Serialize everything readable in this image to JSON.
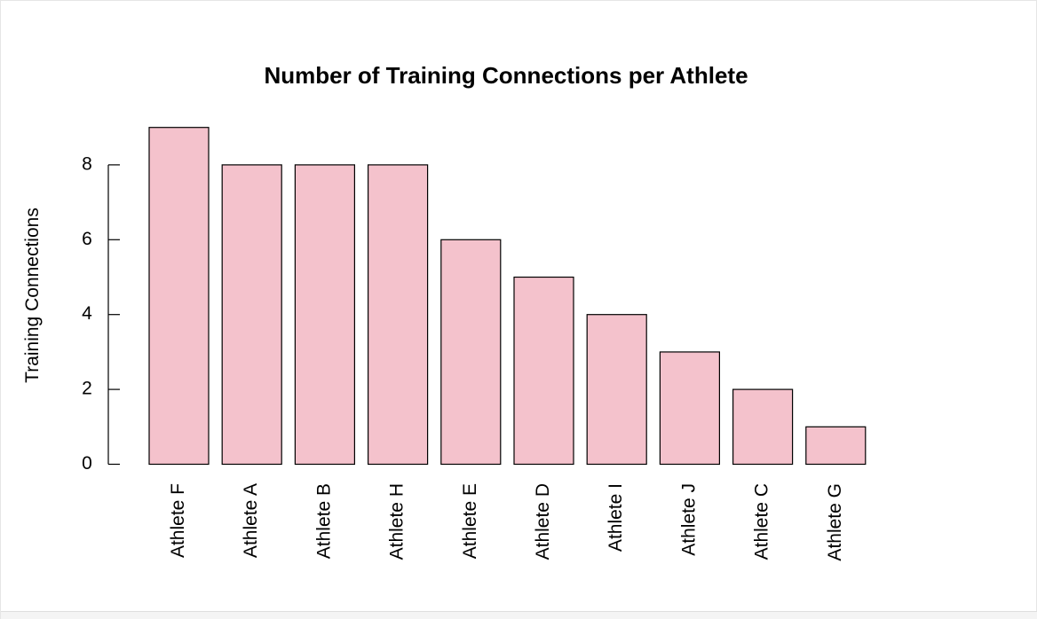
{
  "chart_data": {
    "type": "bar",
    "title": "Number of Training Connections per Athlete",
    "xlabel": "",
    "ylabel": "Training Connections",
    "categories": [
      "Athlete F",
      "Athlete A",
      "Athlete B",
      "Athlete H",
      "Athlete E",
      "Athlete D",
      "Athlete I",
      "Athlete J",
      "Athlete C",
      "Athlete G"
    ],
    "values": [
      9,
      8,
      8,
      8,
      6,
      5,
      4,
      3,
      2,
      1
    ],
    "ylim": [
      0,
      9
    ],
    "yticks": [
      0,
      2,
      4,
      6,
      8
    ],
    "bar_color": "#f4c2cc",
    "bar_border_color": "#000000",
    "grid": false,
    "legend": "none"
  }
}
